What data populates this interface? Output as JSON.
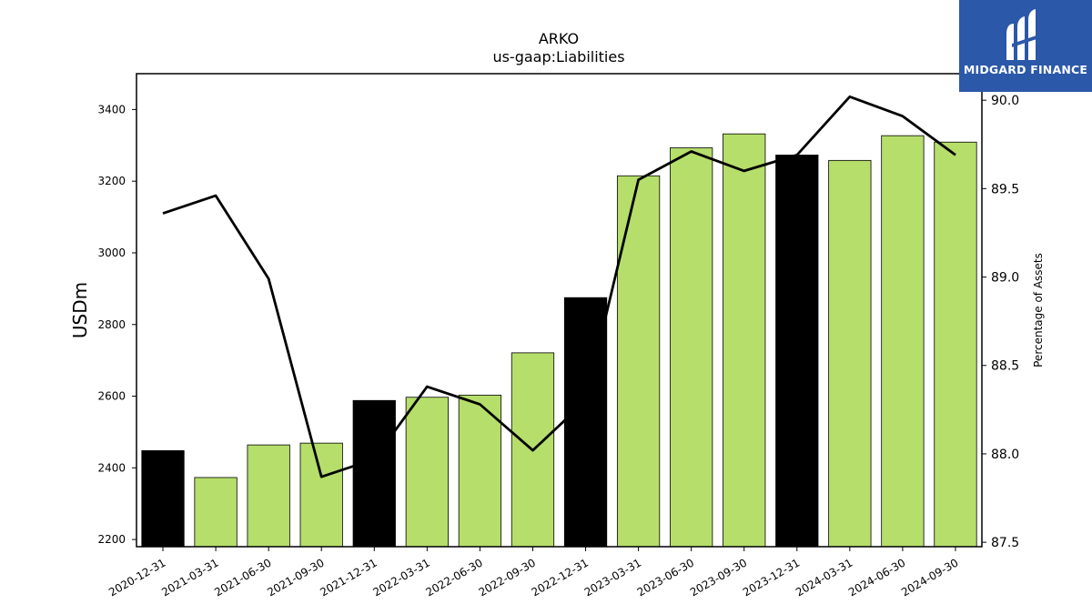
{
  "chart_data": {
    "type": "bar",
    "title": "ARKO",
    "subtitle": "us-gaap:Liabilities",
    "ylabel": "USDm",
    "y2label": "Percentage of Assets",
    "ylim": [
      2180,
      3500
    ],
    "y2lim": [
      87.475,
      90.15
    ],
    "yticks": [
      2200,
      2400,
      2600,
      2800,
      3000,
      3200,
      3400
    ],
    "y2ticks": [
      "87.5",
      "88.0",
      "88.5",
      "89.0",
      "89.5",
      "90.0"
    ],
    "categories": [
      "2020-12-31",
      "2021-03-31",
      "2021-06-30",
      "2021-09-30",
      "2021-12-31",
      "2022-03-31",
      "2022-06-30",
      "2022-09-30",
      "2022-12-31",
      "2023-03-31",
      "2023-06-30",
      "2023-09-30",
      "2023-12-31",
      "2024-03-31",
      "2024-06-30",
      "2024-09-30"
    ],
    "series": [
      {
        "type": "bar",
        "axis": "left",
        "values": [
          2448,
          2373,
          2464,
          2469,
          2588,
          2597,
          2603,
          2721,
          2875,
          3215,
          3293,
          3332,
          3273,
          3258,
          3327,
          3309
        ],
        "colors": [
          "#000000",
          "#b5de6b",
          "#b5de6b",
          "#b5de6b",
          "#000000",
          "#b5de6b",
          "#b5de6b",
          "#b5de6b",
          "#000000",
          "#b5de6b",
          "#b5de6b",
          "#b5de6b",
          "#000000",
          "#b5de6b",
          "#b5de6b",
          "#b5de6b"
        ]
      },
      {
        "type": "line",
        "axis": "right",
        "color": "#000000",
        "values": [
          89.36,
          89.46,
          88.99,
          87.87,
          87.97,
          88.38,
          88.28,
          88.02,
          88.3,
          89.55,
          89.71,
          89.6,
          89.69,
          90.02,
          89.91,
          89.69
        ]
      }
    ],
    "grid": false,
    "legend": "none"
  },
  "logo": {
    "text": "MIDGARD FINANCE",
    "color": "#2b58a8"
  }
}
